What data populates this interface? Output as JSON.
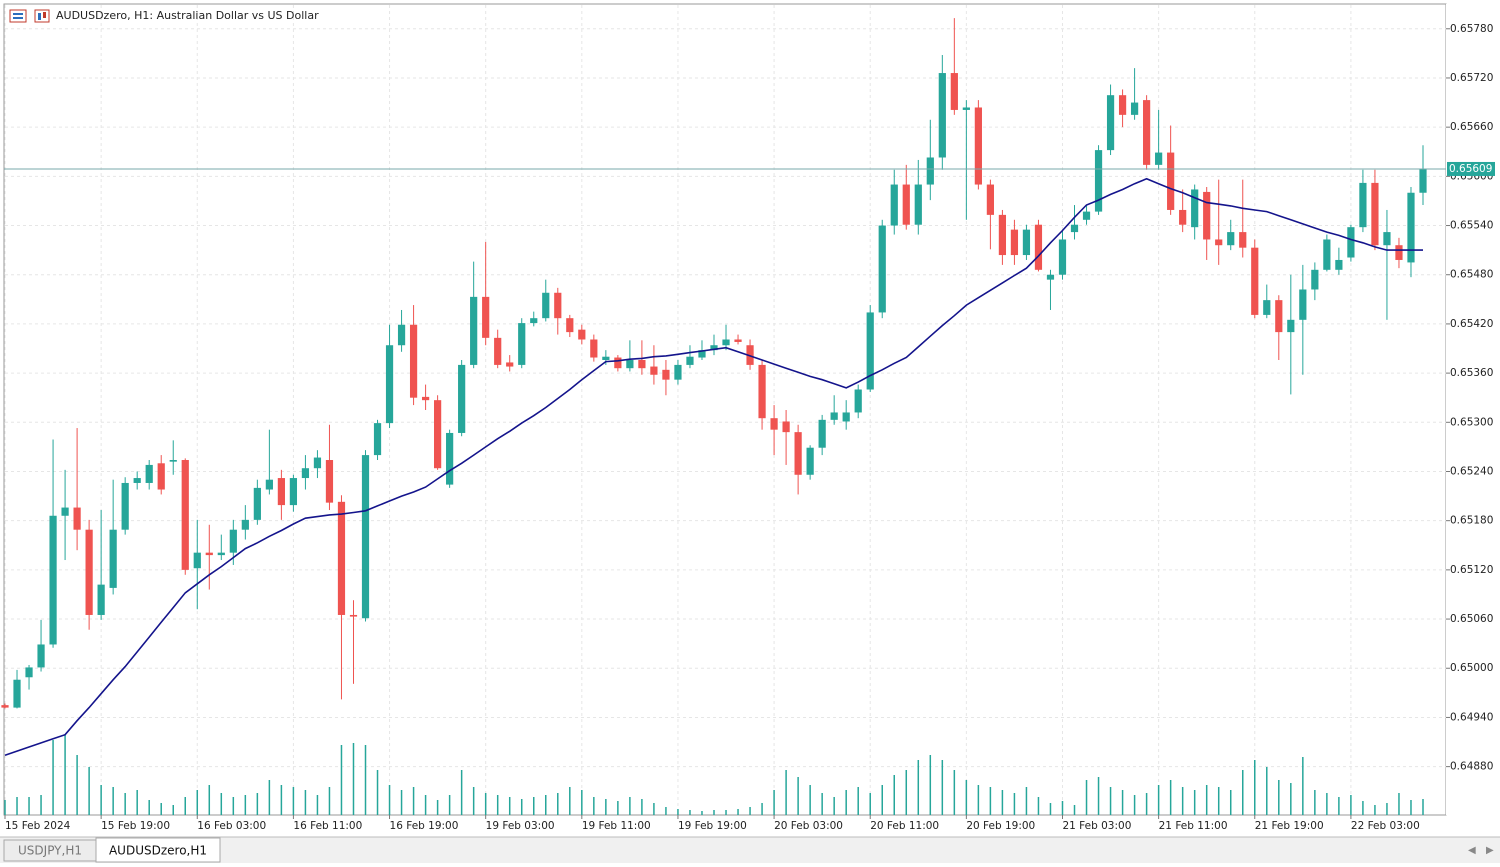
{
  "chart_data": {
    "type": "candlestick",
    "title": "AUDUSDzero, H1:  Australian Dollar vs US Dollar",
    "categories": [
      "15 Feb 2024",
      null,
      null,
      null,
      null,
      null,
      null,
      null,
      "15 Feb 19:00",
      null,
      null,
      null,
      null,
      null,
      null,
      null,
      "16 Feb 03:00",
      null,
      null,
      null,
      null,
      null,
      null,
      null,
      "16 Feb 11:00",
      null,
      null,
      null,
      null,
      null,
      null,
      null,
      "16 Feb 19:00",
      null,
      null,
      null,
      null,
      null,
      null,
      null,
      "19 Feb 03:00",
      null,
      null,
      null,
      null,
      null,
      null,
      null,
      "19 Feb 11:00",
      null,
      null,
      null,
      null,
      null,
      null,
      null,
      "19 Feb 19:00",
      null,
      null,
      null,
      null,
      null,
      null,
      null,
      "20 Feb 03:00",
      null,
      null,
      null,
      null,
      null,
      null,
      null,
      "20 Feb 11:00",
      null,
      null,
      null,
      null,
      null,
      null,
      null,
      "20 Feb 19:00",
      null,
      null,
      null,
      null,
      null,
      null,
      null,
      "21 Feb 03:00",
      null,
      null,
      null,
      null,
      null,
      null,
      null,
      "21 Feb 11:00",
      null,
      null,
      null,
      null,
      null,
      null,
      null,
      "21 Feb 19:00",
      null,
      null,
      null,
      null,
      null,
      null,
      null,
      "22 Feb 03:00",
      null,
      null,
      null,
      null,
      null,
      null
    ],
    "open": [
      0.64955,
      0.64952,
      0.64989,
      0.65001,
      0.65029,
      0.65186,
      0.65196,
      0.65169,
      0.65065,
      0.65098,
      0.65169,
      0.65226,
      0.65226,
      0.6525,
      0.65252,
      0.65254,
      0.65122,
      0.65141,
      0.65138,
      0.65141,
      0.65169,
      0.65181,
      0.65218,
      0.65232,
      0.65199,
      0.65232,
      0.65244,
      0.65254,
      0.65203,
      0.65065,
      0.65061,
      0.6526,
      0.65299,
      0.65394,
      0.65419,
      0.65331,
      0.65327,
      0.65224,
      0.65287,
      0.6537,
      0.65453,
      0.65403,
      0.65373,
      0.6537,
      0.65421,
      0.65427,
      0.65458,
      0.65427,
      0.65413,
      0.65401,
      0.65376,
      0.65379,
      0.65366,
      0.65376,
      0.65368,
      0.65364,
      0.65352,
      0.6537,
      0.65379,
      0.65388,
      0.65394,
      0.65401,
      0.65394,
      0.6537,
      0.65305,
      0.65301,
      0.65288,
      0.65236,
      0.65269,
      0.65303,
      0.65301,
      0.65312,
      0.6534,
      0.65434,
      0.6554,
      0.6559,
      0.65541,
      0.6559,
      0.65623,
      0.65726,
      0.65681,
      0.65684,
      0.6559,
      0.65553,
      0.65535,
      0.65504,
      0.65541,
      0.65474,
      0.6548,
      0.65532,
      0.65547,
      0.65557,
      0.65632,
      0.65699,
      0.65675,
      0.65693,
      0.65614,
      0.65629,
      0.65559,
      0.65538,
      0.65581,
      0.65523,
      0.65516,
      0.65532,
      0.65513,
      0.65431,
      0.65449,
      0.6541,
      0.65425,
      0.65462,
      0.65486,
      0.65486,
      0.65501,
      0.65538,
      0.65592,
      0.65516,
      0.65516,
      0.65495,
      0.6558
    ],
    "high": [
      0.64957,
      0.64998,
      0.65004,
      0.65059,
      0.65279,
      0.65242,
      0.65293,
      0.65181,
      0.65193,
      0.6523,
      0.65233,
      0.6524,
      0.65254,
      0.6526,
      0.65278,
      0.65256,
      0.65181,
      0.65175,
      0.65163,
      0.65181,
      0.65199,
      0.6523,
      0.65291,
      0.65242,
      0.65236,
      0.6526,
      0.65266,
      0.65297,
      0.65211,
      0.65083,
      0.65266,
      0.65303,
      0.65419,
      0.65437,
      0.65443,
      0.65346,
      0.65333,
      0.65291,
      0.65376,
      0.65496,
      0.6552,
      0.65413,
      0.65382,
      0.65427,
      0.65435,
      0.65474,
      0.65464,
      0.65431,
      0.65419,
      0.65407,
      0.65388,
      0.65382,
      0.654,
      0.654,
      0.65394,
      0.65376,
      0.65376,
      0.65394,
      0.654,
      0.65407,
      0.65419,
      0.65407,
      0.65401,
      0.65376,
      0.65321,
      0.65315,
      0.65297,
      0.65272,
      0.65309,
      0.65333,
      0.65327,
      0.65346,
      0.65443,
      0.65547,
      0.65608,
      0.65614,
      0.6562,
      0.65669,
      0.65748,
      0.65793,
      0.65693,
      0.65693,
      0.65596,
      0.65559,
      0.65547,
      0.65541,
      0.65547,
      0.65486,
      0.65535,
      0.65565,
      0.65565,
      0.65638,
      0.65712,
      0.65706,
      0.65732,
      0.65699,
      0.65681,
      0.65662,
      0.65584,
      0.6559,
      0.65587,
      0.65596,
      0.65547,
      0.65596,
      0.65523,
      0.65468,
      0.65455,
      0.6548,
      0.65492,
      0.65495,
      0.65529,
      0.65513,
      0.65541,
      0.65608,
      0.65608,
      0.65559,
      0.65525,
      0.65587,
      0.65638
    ],
    "low": [
      0.64951,
      0.64951,
      0.64974,
      0.64996,
      0.65025,
      0.65132,
      0.65144,
      0.65047,
      0.65059,
      0.6509,
      0.65163,
      0.65218,
      0.65218,
      0.65212,
      0.65236,
      0.65114,
      0.65072,
      0.65096,
      0.65132,
      0.65126,
      0.65157,
      0.65175,
      0.65212,
      0.65181,
      0.65191,
      0.65218,
      0.65232,
      0.65193,
      0.64962,
      0.64981,
      0.65057,
      0.65254,
      0.65293,
      0.65386,
      0.65321,
      0.65315,
      0.65242,
      0.6522,
      0.65283,
      0.65366,
      0.65394,
      0.65366,
      0.65362,
      0.65366,
      0.65417,
      0.65423,
      0.65407,
      0.65404,
      0.65395,
      0.65374,
      0.6537,
      0.65362,
      0.65362,
      0.65358,
      0.65346,
      0.65333,
      0.65346,
      0.65366,
      0.65376,
      0.65382,
      0.65388,
      0.65395,
      0.65364,
      0.65291,
      0.6526,
      0.65248,
      0.65212,
      0.6523,
      0.6526,
      0.65297,
      0.65291,
      0.65305,
      0.65337,
      0.65427,
      0.65529,
      0.65535,
      0.65529,
      0.65571,
      0.65608,
      0.65675,
      0.65547,
      0.65584,
      0.65511,
      0.65492,
      0.65492,
      0.65498,
      0.65484,
      0.65437,
      0.65474,
      0.65523,
      0.65541,
      0.65553,
      0.65626,
      0.6566,
      0.65669,
      0.65608,
      0.65608,
      0.65553,
      0.65532,
      0.65523,
      0.65498,
      0.65492,
      0.6551,
      0.65501,
      0.65427,
      0.65427,
      0.65376,
      0.65334,
      0.65358,
      0.65449,
      0.65484,
      0.6548,
      0.65496,
      0.65532,
      0.6551,
      0.65425,
      0.65488,
      0.65477,
      0.65565
    ],
    "close": [
      0.64952,
      0.64986,
      0.65001,
      0.65029,
      0.65186,
      0.65196,
      0.65169,
      0.65065,
      0.65102,
      0.65169,
      0.65226,
      0.65232,
      0.65248,
      0.65218,
      0.65254,
      0.6512,
      0.65141,
      0.65138,
      0.65141,
      0.65169,
      0.65181,
      0.6522,
      0.6523,
      0.65199,
      0.65232,
      0.65244,
      0.65257,
      0.65202,
      0.65065,
      0.65063,
      0.6526,
      0.65299,
      0.65394,
      0.65419,
      0.6533,
      0.65327,
      0.65244,
      0.65287,
      0.6537,
      0.65453,
      0.65403,
      0.6537,
      0.65368,
      0.65421,
      0.65427,
      0.65458,
      0.65427,
      0.6541,
      0.65401,
      0.65379,
      0.6538,
      0.65366,
      0.65376,
      0.65366,
      0.65358,
      0.65352,
      0.6537,
      0.6538,
      0.65388,
      0.65394,
      0.65401,
      0.65398,
      0.6537,
      0.65305,
      0.65291,
      0.65288,
      0.65236,
      0.65269,
      0.65303,
      0.65312,
      0.65312,
      0.6534,
      0.65434,
      0.6554,
      0.6559,
      0.65541,
      0.6559,
      0.65623,
      0.65726,
      0.65681,
      0.65684,
      0.6559,
      0.65553,
      0.65504,
      0.65504,
      0.65535,
      0.65486,
      0.6548,
      0.65523,
      0.65541,
      0.65557,
      0.65632,
      0.65699,
      0.65675,
      0.6569,
      0.65614,
      0.65629,
      0.65559,
      0.65541,
      0.65584,
      0.65523,
      0.65516,
      0.65532,
      0.65513,
      0.65431,
      0.65449,
      0.6541,
      0.65425,
      0.65462,
      0.65486,
      0.65523,
      0.65498,
      0.65538,
      0.65592,
      0.65516,
      0.65532,
      0.65498,
      0.6558,
      0.65609
    ],
    "up_color": "#26a69a",
    "down_color": "#ef5350",
    "moving_average": {
      "color": "#14148c",
      "values": [
        0.64894,
        0.64899,
        0.64904,
        0.64909,
        0.64914,
        0.64919,
        0.64936,
        0.64952,
        0.64969,
        0.64986,
        0.65002,
        0.6502,
        0.65038,
        0.65056,
        0.65074,
        0.65092,
        0.65103,
        0.65114,
        0.65124,
        0.65135,
        0.65146,
        0.65153,
        0.65161,
        0.65168,
        0.65176,
        0.65183,
        0.65185,
        0.65187,
        0.65188,
        0.6519,
        0.65192,
        0.65198,
        0.65204,
        0.6521,
        0.65215,
        0.65221,
        0.65231,
        0.65241,
        0.6525,
        0.6526,
        0.6527,
        0.6528,
        0.65289,
        0.65299,
        0.65308,
        0.65318,
        0.65329,
        0.6534,
        0.65352,
        0.65363,
        0.65374,
        0.65375,
        0.65377,
        0.65378,
        0.6538,
        0.65381,
        0.65383,
        0.65385,
        0.65387,
        0.65389,
        0.65391,
        0.65386,
        0.65381,
        0.65376,
        0.65371,
        0.65366,
        0.65361,
        0.65356,
        0.65352,
        0.65347,
        0.65342,
        0.65349,
        0.65357,
        0.65364,
        0.65372,
        0.65379,
        0.65392,
        0.65405,
        0.65418,
        0.6543,
        0.65443,
        0.65452,
        0.65461,
        0.6547,
        0.65479,
        0.65488,
        0.65503,
        0.65519,
        0.65534,
        0.6555,
        0.65565,
        0.65571,
        0.65578,
        0.65584,
        0.65591,
        0.65597,
        0.65591,
        0.65585,
        0.6558,
        0.65574,
        0.65568,
        0.65566,
        0.65564,
        0.65561,
        0.65559,
        0.65557,
        0.65552,
        0.65547,
        0.65542,
        0.65537,
        0.65532,
        0.65528,
        0.65523,
        0.65519,
        0.65514,
        0.6551,
        0.6551,
        0.6551,
        0.6551
      ]
    },
    "volume": {
      "color": "#26a69a",
      "ylim": [
        0,
        100
      ],
      "values": [
        15,
        18,
        18,
        20,
        75,
        80,
        60,
        48,
        30,
        28,
        22,
        25,
        15,
        12,
        10,
        18,
        25,
        30,
        22,
        18,
        20,
        22,
        35,
        30,
        28,
        25,
        20,
        28,
        70,
        72,
        70,
        45,
        30,
        25,
        28,
        20,
        15,
        20,
        45,
        28,
        22,
        20,
        18,
        16,
        18,
        20,
        22,
        28,
        25,
        18,
        16,
        14,
        18,
        16,
        12,
        8,
        6,
        5,
        4,
        5,
        5,
        6,
        8,
        12,
        25,
        45,
        38,
        30,
        22,
        18,
        25,
        28,
        22,
        30,
        40,
        45,
        55,
        60,
        55,
        45,
        35,
        30,
        28,
        25,
        22,
        28,
        18,
        12,
        14,
        10,
        35,
        38,
        28,
        25,
        20,
        22,
        30,
        35,
        28,
        25,
        30,
        28,
        25,
        45,
        55,
        48,
        35,
        32,
        58,
        25,
        22,
        18,
        20,
        14,
        10,
        12,
        22,
        15,
        16
      ]
    },
    "current_price": 0.65609,
    "ylim": [
      0.64821,
      0.65809
    ],
    "yticks": [
      {
        "value": 0.6578,
        "label": "0.65780"
      },
      {
        "value": 0.6572,
        "label": "0.65720"
      },
      {
        "value": 0.6566,
        "label": "0.65660"
      },
      {
        "value": 0.656,
        "label": "0.65600"
      },
      {
        "value": 0.6554,
        "label": "0.65540"
      },
      {
        "value": 0.6548,
        "label": "0.65480"
      },
      {
        "value": 0.6542,
        "label": "0.65420"
      },
      {
        "value": 0.6536,
        "label": "0.65360"
      },
      {
        "value": 0.653,
        "label": "0.65300"
      },
      {
        "value": 0.6524,
        "label": "0.65240"
      },
      {
        "value": 0.6518,
        "label": "0.65180"
      },
      {
        "value": 0.6512,
        "label": "0.65120"
      },
      {
        "value": 0.6506,
        "label": "0.65060"
      },
      {
        "value": 0.65,
        "label": "0.65000"
      },
      {
        "value": 0.6494,
        "label": "0.64940"
      },
      {
        "value": 0.6488,
        "label": "0.64880"
      }
    ],
    "grid": true
  },
  "tabs": [
    "USDJPY,H1",
    "AUDUSDzero,H1"
  ]
}
